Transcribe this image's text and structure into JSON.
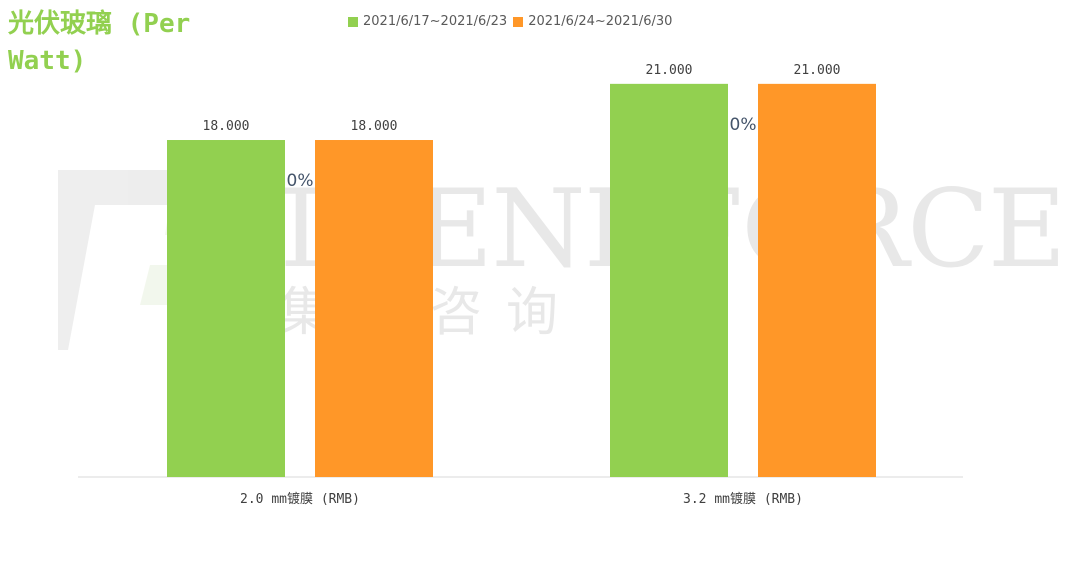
{
  "chart_data": {
    "type": "bar",
    "title": "光伏玻璃 (Per Watt)",
    "categories": [
      "2.0 mm镀膜 (RMB)",
      "3.2 mm镀膜 (RMB)"
    ],
    "series": [
      {
        "name": "2021/6/17~2021/6/23",
        "values": [
          18.0,
          21.0
        ],
        "color": "#92d050"
      },
      {
        "name": "2021/6/24~2021/6/30",
        "values": [
          18.0,
          21.0
        ],
        "color": "#ff9728"
      }
    ],
    "data_labels": [
      [
        "18.000",
        "21.000"
      ],
      [
        "18.000",
        "21.000"
      ]
    ],
    "change_labels": [
      "0%",
      "0%"
    ],
    "ylim": [
      0,
      21.9
    ],
    "grid": false,
    "legend_position": "top",
    "watermark": {
      "brand": "TRENDFORCE",
      "subtitle": "集邦咨询"
    }
  }
}
